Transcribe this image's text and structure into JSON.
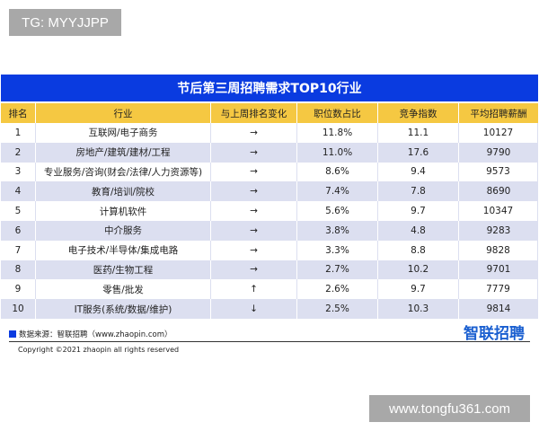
{
  "watermark_top": "TG: MYYJJPP",
  "watermark_bottom": "www.tongfu361.com",
  "title": "节后第三周招聘需求TOP10行业",
  "headers": [
    "排名",
    "行业",
    "与上周排名变化",
    "职位数占比",
    "竞争指数",
    "平均招聘薪酬"
  ],
  "rows": [
    [
      "1",
      "互联网/电子商务",
      "→",
      "11.8%",
      "11.1",
      "10127"
    ],
    [
      "2",
      "房地产/建筑/建材/工程",
      "→",
      "11.0%",
      "17.6",
      "9790"
    ],
    [
      "3",
      "专业服务/咨询(财会/法律/人力资源等)",
      "→",
      "8.6%",
      "9.4",
      "9573"
    ],
    [
      "4",
      "教育/培训/院校",
      "→",
      "7.4%",
      "7.8",
      "8690"
    ],
    [
      "5",
      "计算机软件",
      "→",
      "5.6%",
      "9.7",
      "10347"
    ],
    [
      "6",
      "中介服务",
      "→",
      "3.8%",
      "4.8",
      "9283"
    ],
    [
      "7",
      "电子技术/半导体/集成电路",
      "→",
      "3.3%",
      "8.8",
      "9828"
    ],
    [
      "8",
      "医药/生物工程",
      "→",
      "2.7%",
      "10.2",
      "9701"
    ],
    [
      "9",
      "零售/批发",
      "↑",
      "2.6%",
      "9.7",
      "7779"
    ],
    [
      "10",
      "IT服务(系统/数据/维护)",
      "↓",
      "2.5%",
      "10.3",
      "9814"
    ]
  ],
  "source": "数据来源：智联招聘（www.zhaopin.com）",
  "copyright": "Copyright ©2021 zhaopin all rights reserved",
  "brand": "智联招聘",
  "colors": {
    "title_bg": "#0a3be0",
    "header_bg": "#f5c842",
    "alt_row": "#dcdff0"
  }
}
